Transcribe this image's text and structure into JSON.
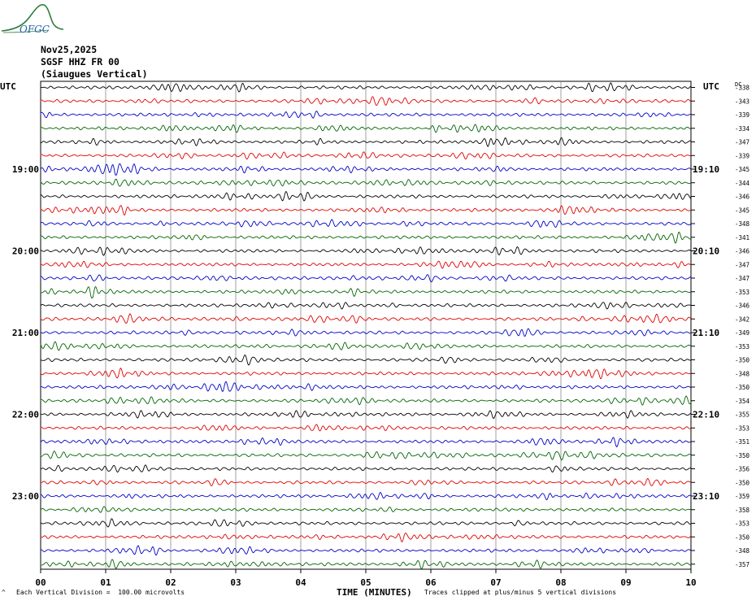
{
  "logo": {
    "text": "OFGC"
  },
  "header": {
    "date": "Nov25,2025",
    "station": "SGSF HHZ FR 00",
    "location": "(Siaugues Vertical)"
  },
  "axis": {
    "left_label": "UTC",
    "right_label": "UTC",
    "dc_label": "DC",
    "xlabel": "TIME (MINUTES)",
    "x_ticks": [
      "00",
      "01",
      "02",
      "03",
      "04",
      "05",
      "06",
      "07",
      "08",
      "09",
      "10"
    ]
  },
  "footer": {
    "left_symbol": "^",
    "left": "Each Vertical Division =  100.00 microvolts",
    "right": "Traces clipped at plus/minus 5 vertical divisions"
  },
  "chart_data": {
    "type": "line",
    "title": "",
    "xlabel": "TIME (MINUTES)",
    "ylabel": "UTC",
    "xlim": [
      0,
      10
    ],
    "minutes_per_trace": 10,
    "trace_count": 36,
    "trace_colors": [
      "#000000",
      "#e00000",
      "#0000c8",
      "#006400"
    ],
    "hour_labels_left": [
      {
        "trace": 6,
        "label": "19:00"
      },
      {
        "trace": 12,
        "label": "20:00"
      },
      {
        "trace": 18,
        "label": "21:00"
      },
      {
        "trace": 24,
        "label": "22:00"
      },
      {
        "trace": 30,
        "label": "23:00"
      }
    ],
    "hour_labels_right": [
      {
        "trace": 6,
        "label": "19:10"
      },
      {
        "trace": 12,
        "label": "20:10"
      },
      {
        "trace": 18,
        "label": "21:10"
      },
      {
        "trace": 24,
        "label": "22:10"
      },
      {
        "trace": 30,
        "label": "23:10"
      }
    ],
    "dc_offsets": [
      "-338",
      "-343",
      "-339",
      "-334",
      "-347",
      "-339",
      "-345",
      "-344",
      "-346",
      "-345",
      "-348",
      "-341",
      "-346",
      "-347",
      "-347",
      "-353",
      "-346",
      "-342",
      "-349",
      "-353",
      "-350",
      "-348",
      "-350",
      "-354",
      "-355",
      "-353",
      "-351",
      "-350",
      "-356",
      "-350",
      "-359",
      "-358",
      "-353",
      "-350",
      "-348",
      "-357"
    ]
  }
}
